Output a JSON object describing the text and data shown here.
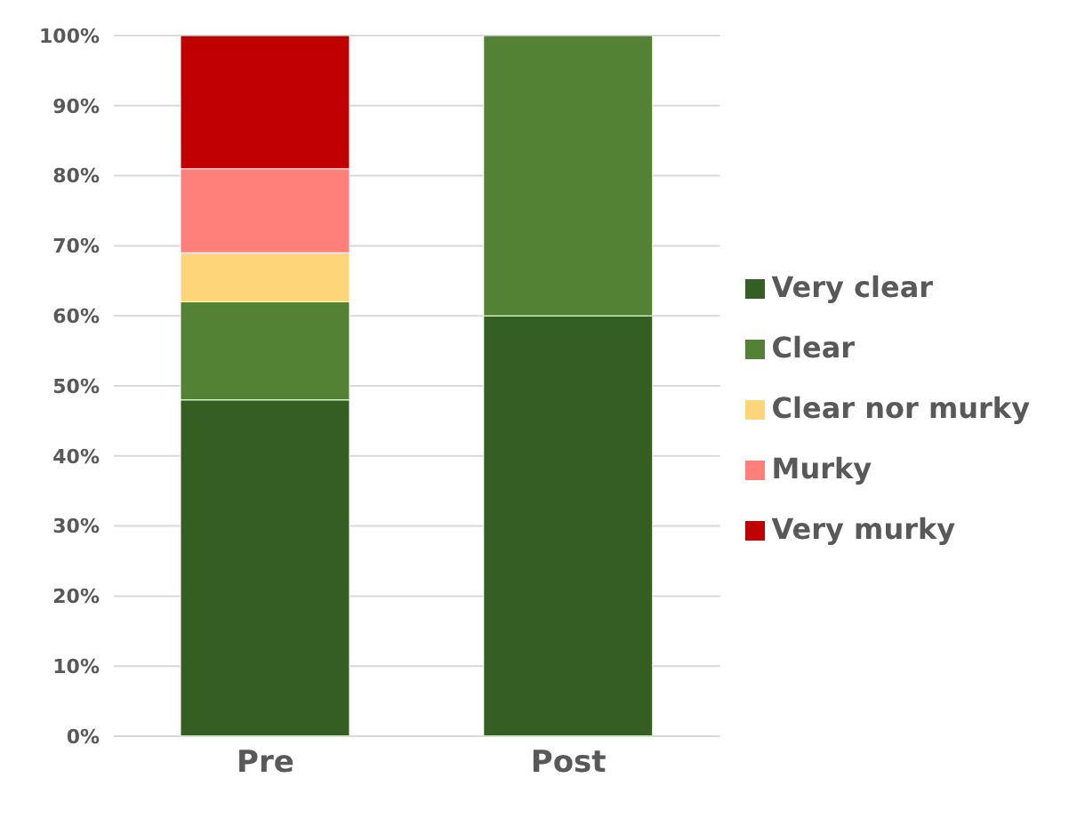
{
  "chart_data": {
    "type": "bar",
    "stacked": true,
    "categories": [
      "Pre",
      "Post"
    ],
    "series": [
      {
        "name": "Very clear",
        "color": "#355e23",
        "values": [
          48,
          60
        ]
      },
      {
        "name": "Clear",
        "color": "#548235",
        "values": [
          14,
          40
        ]
      },
      {
        "name": "Clear nor murky",
        "color": "#ffd579",
        "values": [
          7,
          0
        ]
      },
      {
        "name": "Murky",
        "color": "#ff7f7a",
        "values": [
          12,
          0
        ]
      },
      {
        "name": "Very murky",
        "color": "#c00000",
        "values": [
          19,
          0
        ]
      }
    ],
    "ylim": [
      0,
      100
    ],
    "yticks": [
      {
        "value": 0,
        "label": "0%"
      },
      {
        "value": 10,
        "label": "10%"
      },
      {
        "value": 20,
        "label": "20%"
      },
      {
        "value": 30,
        "label": "30%"
      },
      {
        "value": 40,
        "label": "40%"
      },
      {
        "value": 50,
        "label": "50%"
      },
      {
        "value": 60,
        "label": "60%"
      },
      {
        "value": 70,
        "label": "70%"
      },
      {
        "value": 80,
        "label": "80%"
      },
      {
        "value": 90,
        "label": "90%"
      },
      {
        "value": 100,
        "label": "100%"
      }
    ],
    "grid": "y",
    "legend": "right"
  }
}
